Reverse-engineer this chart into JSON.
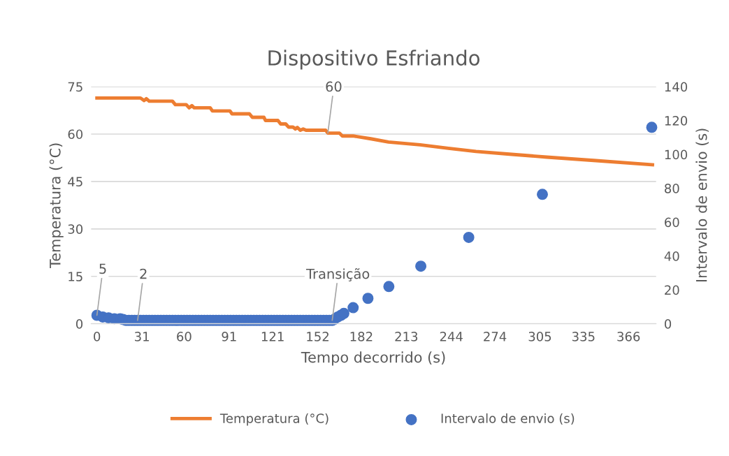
{
  "chart_data": {
    "type": "line",
    "title": "Dispositivo Esfriando",
    "xlabel": "Tempo decorrido (s)",
    "ylabel": "Temperatura (°C)",
    "y2label": "Intervalo de envio (s)",
    "xlim": [
      -4,
      385
    ],
    "xticks": [
      0,
      31,
      60,
      91,
      121,
      152,
      182,
      213,
      244,
      274,
      305,
      335,
      366
    ],
    "ylim": [
      0,
      75
    ],
    "yticks": [
      0,
      15,
      30,
      45,
      60,
      75
    ],
    "y2lim": [
      0,
      140
    ],
    "y2ticks": [
      0,
      20,
      40,
      60,
      80,
      100,
      120,
      140
    ],
    "grid": "y",
    "legend": "bottom",
    "series": [
      {
        "name": "Temperatura (°C)",
        "type": "line",
        "color": "#ed7d31",
        "marker": "none",
        "line_style": "solid",
        "x": [
          0,
          30,
          32.5,
          34,
          36,
          52,
          54,
          61.5,
          63.5,
          65.4,
          67,
          78,
          79.5,
          91.6,
          93,
          105,
          107,
          115,
          116,
          124.6,
          126.5,
          130,
          132,
          135,
          136.7,
          138,
          140,
          142,
          144,
          157.5,
          159,
          167,
          169,
          176.4,
          188.6,
          200.7,
          222.5,
          242,
          261,
          285.5,
          309.7,
          343.7,
          382.5
        ],
        "values": [
          71.4,
          71.4,
          70.6,
          71.2,
          70.4,
          70.4,
          69.3,
          69.3,
          68.3,
          69,
          68.3,
          68.3,
          67.3,
          67.3,
          66.4,
          66.4,
          65.3,
          65.3,
          64.3,
          64.3,
          63.2,
          63.2,
          62.2,
          62.2,
          61.6,
          62.1,
          61.2,
          61.6,
          61.2,
          61.2,
          60.3,
          60.3,
          59.4,
          59.4,
          58.5,
          57.5,
          56.6,
          55.5,
          54.5,
          53.6,
          52.7,
          51.6,
          50.3
        ],
        "value_labels": [
          null,
          null,
          null,
          null,
          null,
          null,
          null,
          null,
          null,
          null,
          null,
          null,
          null,
          null,
          null,
          null,
          null,
          null,
          null,
          null,
          null,
          null,
          null,
          null,
          null,
          null,
          null,
          null,
          null,
          null,
          "60",
          null,
          null,
          null,
          null,
          null,
          null,
          null,
          null,
          null,
          null,
          null,
          null
        ]
      },
      {
        "name": "Intervalo de envio (s)",
        "type": "scatter",
        "axis": "y2",
        "color": "#4472c4",
        "marker": "circle",
        "x": [
          0,
          4,
          8,
          12,
          16,
          18,
          20,
          22,
          24,
          26,
          28,
          30,
          32,
          34,
          36,
          38,
          40,
          42,
          44,
          46,
          48,
          50,
          52,
          54,
          56,
          58,
          60,
          62,
          64,
          66,
          68,
          70,
          72,
          74,
          76,
          78,
          80,
          82,
          84,
          86,
          88,
          90,
          92,
          94,
          96,
          98,
          100,
          102,
          104,
          106,
          108,
          110,
          112,
          114,
          116,
          118,
          120,
          122,
          124,
          126,
          128,
          130,
          132,
          134,
          136,
          138,
          140,
          142,
          144,
          146,
          148,
          150,
          152,
          154,
          156,
          158,
          160,
          162,
          163.4,
          165.8,
          168,
          170,
          176.4,
          186.6,
          201,
          223,
          256,
          306.7,
          382
        ],
        "values": [
          5,
          4,
          3.5,
          3,
          3,
          2.5,
          2,
          2,
          2,
          2,
          2,
          2,
          2,
          2,
          2,
          2,
          2,
          2,
          2,
          2,
          2,
          2,
          2,
          2,
          2,
          2,
          2,
          2,
          2,
          2,
          2,
          2,
          2,
          2,
          2,
          2,
          2,
          2,
          2,
          2,
          2,
          2,
          2,
          2,
          2,
          2,
          2,
          2,
          2,
          2,
          2,
          2,
          2,
          2,
          2,
          2,
          2,
          2,
          2,
          2,
          2,
          2,
          2,
          2,
          2,
          2,
          2,
          2,
          2,
          2,
          2,
          2,
          2,
          2,
          2,
          2,
          2,
          2,
          2.6,
          4,
          5,
          6.1,
          9.5,
          15,
          22,
          34,
          51,
          76.4,
          116
        ],
        "value_labels": [
          "5",
          null,
          null,
          null,
          null,
          null,
          null,
          null,
          null,
          null,
          "2",
          null,
          null,
          null,
          null,
          null,
          null,
          null,
          null,
          null,
          null,
          null,
          null,
          null,
          null,
          null,
          null,
          null,
          null,
          null,
          null,
          null,
          null,
          null,
          null,
          null,
          null,
          null,
          null,
          null,
          null,
          null,
          null,
          null,
          null,
          null,
          null,
          null,
          null,
          null,
          null,
          null,
          null,
          null,
          null,
          null,
          null,
          null,
          null,
          null,
          null,
          null,
          null,
          null,
          null,
          null,
          null,
          null,
          null,
          null,
          null,
          null,
          null,
          null,
          null,
          null,
          null,
          "Transição",
          null,
          null,
          null,
          null,
          null,
          null,
          null,
          null,
          null,
          null,
          null
        ]
      }
    ]
  }
}
